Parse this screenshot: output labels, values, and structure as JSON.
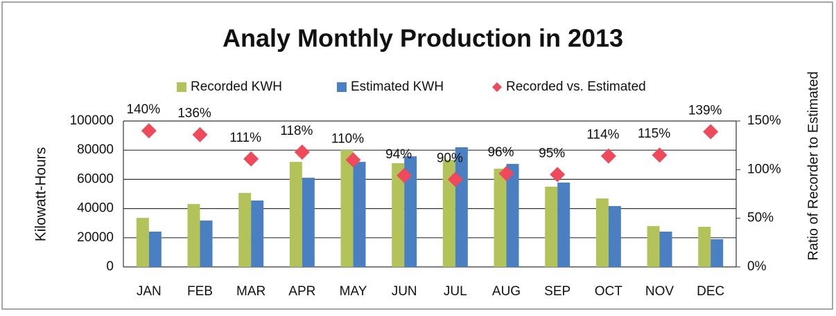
{
  "chart_data": {
    "type": "bar",
    "title": "Analy Monthly Production in 2013",
    "y_label": "Kilowatt-Hours",
    "y2_label": "Ratio of Recorder to Estimated",
    "categories": [
      "JAN",
      "FEB",
      "MAR",
      "APR",
      "MAY",
      "JUN",
      "JUL",
      "AUG",
      "SEP",
      "OCT",
      "NOV",
      "DEC"
    ],
    "series": [
      {
        "name": "Recorded KWH",
        "color": "#b3c35a",
        "values": [
          33600,
          43100,
          50700,
          72000,
          80100,
          71100,
          73500,
          67300,
          55000,
          46900,
          28000,
          27500
        ]
      },
      {
        "name": "Estimated KWH",
        "color": "#4a7fc1",
        "values": [
          24200,
          31800,
          45500,
          61100,
          72000,
          75800,
          82000,
          70600,
          57800,
          41700,
          24200,
          19000
        ]
      },
      {
        "name": "Recorded vs. Estimated",
        "color": "#ee4a5c",
        "axis": "y2",
        "values": [
          140,
          136,
          111,
          118,
          110,
          94,
          90,
          96,
          95,
          114,
          115,
          139
        ],
        "value_labels": [
          "140%",
          "136%",
          "111%",
          "118%",
          "110%",
          "94%",
          "90%",
          "96%",
          "95%",
          "114%",
          "115%",
          "139%"
        ]
      }
    ],
    "ylim": [
      0,
      100000
    ],
    "yticks": [
      0,
      20000,
      40000,
      60000,
      80000,
      100000
    ],
    "y2lim": [
      0,
      150
    ],
    "y2ticks": [
      {
        "value": 0,
        "label": "0%"
      },
      {
        "value": 50,
        "label": "50%"
      },
      {
        "value": 100,
        "label": "100%"
      },
      {
        "value": 150,
        "label": "150%"
      }
    ],
    "grid": true,
    "legend": "top"
  }
}
